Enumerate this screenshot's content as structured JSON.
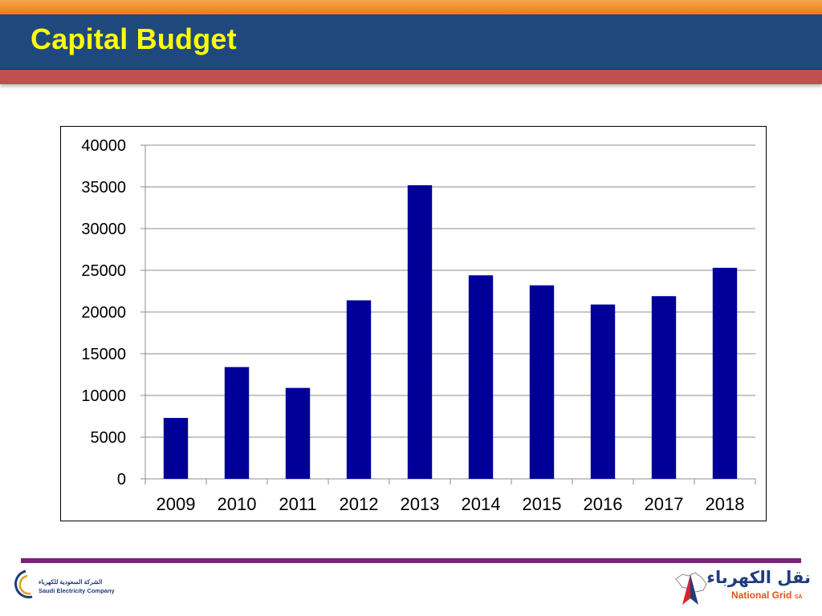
{
  "slide": {
    "title": "Capital Budget"
  },
  "colors": {
    "bar": "#000099",
    "title_band": "#1f497d",
    "title_text": "#ffff00",
    "orange_band": "#f08a2a",
    "red_band": "#c0504d",
    "bottom_rule": "#7b1f7b"
  },
  "chart_data": {
    "type": "bar",
    "categories": [
      "2009",
      "2010",
      "2011",
      "2012",
      "2013",
      "2014",
      "2015",
      "2016",
      "2017",
      "2018"
    ],
    "values": [
      7300,
      13400,
      10900,
      21400,
      35200,
      24400,
      23200,
      20900,
      21900,
      25300
    ],
    "y_ticks": [
      "0",
      "5000",
      "10000",
      "15000",
      "20000",
      "25000",
      "30000",
      "35000",
      "40000"
    ],
    "ylim": [
      0,
      40000
    ],
    "title": "",
    "xlabel": "",
    "ylabel": "",
    "grid": true,
    "legend": "none"
  },
  "footer": {
    "left_logo_ar": "الشركة السعودية للكهرباء",
    "left_logo_en": "Saudi Electricity Company",
    "right_logo_ar": "نقل الكهرباء",
    "right_logo_en": "National Grid",
    "right_logo_suffix": "SA"
  }
}
